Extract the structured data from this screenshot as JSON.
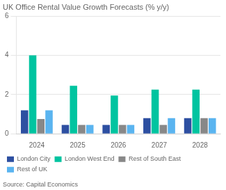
{
  "chart_data": {
    "type": "bar",
    "title": "UK Office Rental Value Growth Forecasts (% y/y)",
    "annotations": [
      "Source: Capital Economics"
    ],
    "categories": [
      "2024",
      "2025",
      "2026",
      "2027",
      "2028"
    ],
    "series": [
      {
        "name": "London City",
        "color": "#2d4fa1",
        "values": [
          1.2,
          0.45,
          0.45,
          0.8,
          0.8
        ]
      },
      {
        "name": "London West End",
        "color": "#00c4a0",
        "values": [
          4.0,
          2.45,
          1.95,
          2.25,
          2.25
        ]
      },
      {
        "name": "Rest of South East",
        "color": "#888888",
        "values": [
          0.75,
          0.45,
          0.45,
          0.45,
          0.8
        ]
      },
      {
        "name": "Rest of UK",
        "color": "#5ab4f0",
        "values": [
          1.2,
          0.45,
          0.45,
          0.8,
          0.8
        ]
      }
    ],
    "ylim": [
      0,
      6
    ],
    "yticks": [
      0,
      2,
      4,
      6
    ],
    "grid": true,
    "legend": "bottom"
  }
}
